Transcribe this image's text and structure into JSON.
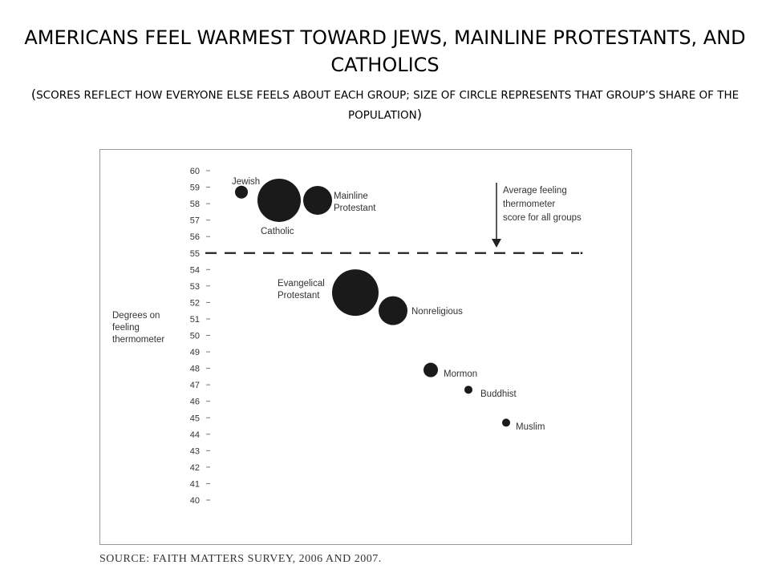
{
  "title": "AMERICANS FEEL WARMEST TOWARD JEWS, MAINLINE PROTESTANTS, AND CATHOLICS",
  "subtitle": "SCORES REFLECT HOW EVERYONE ELSE FEELS ABOUT EACH GROUP; SIZE OF CIRCLE REPRESENTS THAT GROUP’S SHARE OF THE POPULATION",
  "paren_open": "(",
  "paren_close": ")",
  "source": "SOURCE: FAITH MATTERS SURVEY, 2006 AND 2007.",
  "colors": {
    "marker": "#1a1a1a",
    "axis_text": "#333333",
    "frame": "#9a9a9a"
  },
  "chart_data": {
    "type": "scatter",
    "ylabel": [
      "Degrees on",
      "feeling",
      "thermometer"
    ],
    "ylim": [
      40,
      60
    ],
    "yticks": [
      40,
      41,
      42,
      43,
      44,
      45,
      46,
      47,
      48,
      49,
      50,
      51,
      52,
      53,
      54,
      55,
      56,
      57,
      58,
      59,
      60
    ],
    "points": [
      {
        "label": [
          "Jewish"
        ],
        "y": 58.7,
        "size": "small"
      },
      {
        "label": [
          "Catholic"
        ],
        "y": 58.2,
        "size": "large"
      },
      {
        "label": [
          "Mainline",
          "Protestant"
        ],
        "y": 58.2,
        "size": "medium"
      },
      {
        "label": [
          "Evangelical",
          "Protestant"
        ],
        "y": 52.6,
        "size": "large"
      },
      {
        "label": [
          "Nonreligious"
        ],
        "y": 51.5,
        "size": "medium"
      },
      {
        "label": [
          "Mormon"
        ],
        "y": 47.9,
        "size": "small"
      },
      {
        "label": [
          "Buddhist"
        ],
        "y": 46.7,
        "size": "tiny"
      },
      {
        "label": [
          "Muslim"
        ],
        "y": 44.7,
        "size": "tiny"
      }
    ],
    "reference_line": {
      "y": 55,
      "style": "dashed",
      "label": [
        "Average feeling",
        "thermometer",
        "score for all groups"
      ]
    }
  }
}
